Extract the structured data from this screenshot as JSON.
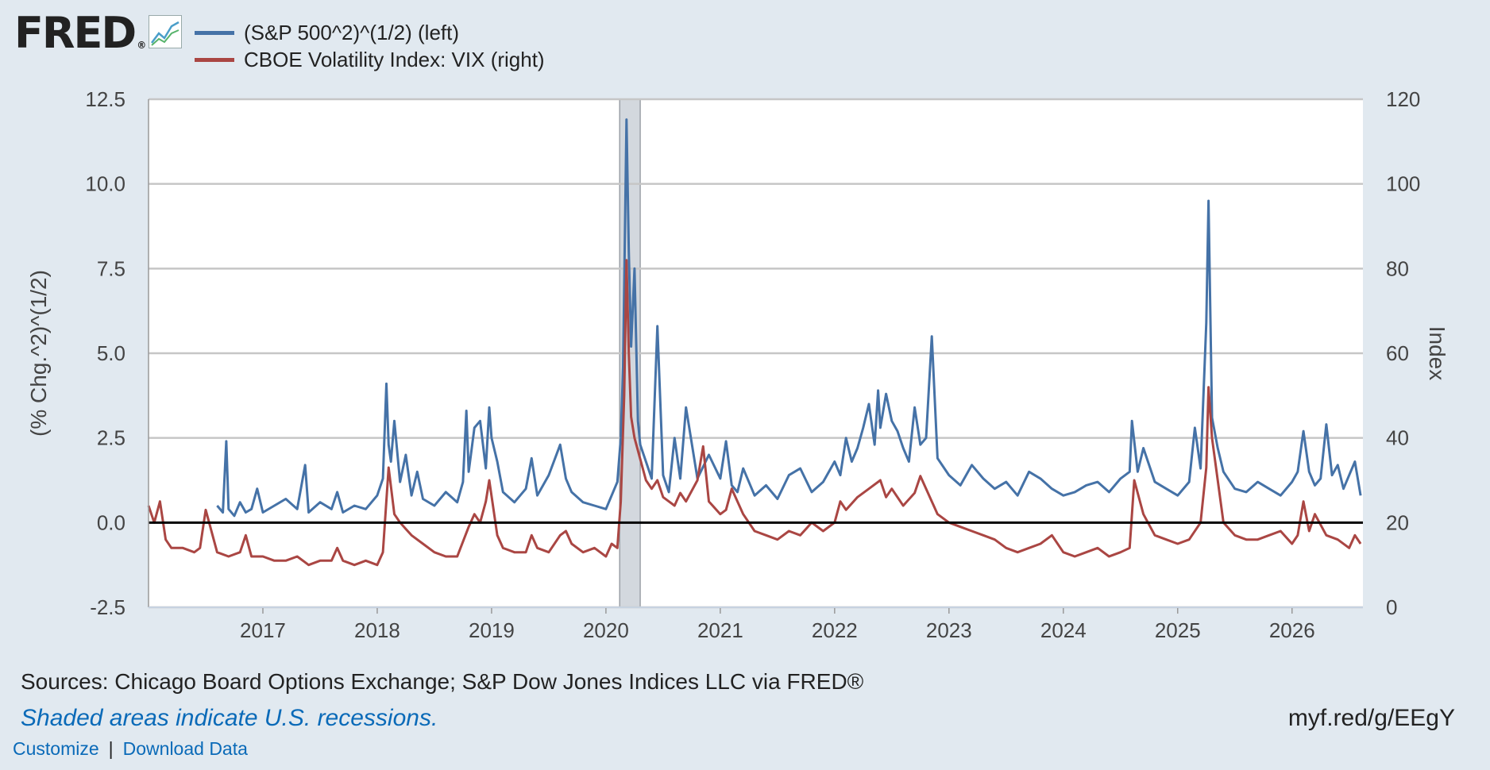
{
  "header": {
    "logo_text": "FRED",
    "logo_mark": "®",
    "graph_icon": "line-chart-icon"
  },
  "legend": [
    {
      "label": "(S&P 500^2)^(1/2) (left)",
      "color": "#4572a7"
    },
    {
      "label": "CBOE Volatility Index: VIX (right)",
      "color": "#aa4643"
    }
  ],
  "footer": {
    "sources": "Sources: Chicago Board Options Exchange; S&P Dow Jones Indices LLC via FRED®",
    "recession_note": "Shaded areas indicate U.S. recessions.",
    "short_url": "myf.red/g/EEgY",
    "customize": "Customize",
    "separator": "|",
    "download": "Download Data"
  },
  "chart_data": {
    "type": "line",
    "title": "",
    "xlabel": "",
    "ylabel_left": "(% Chg.^2)^(1/2)",
    "ylabel_right": "Index",
    "xlim": [
      2016.0,
      2026.62
    ],
    "ylim_left": [
      -2.5,
      12.5
    ],
    "ylim_right": [
      0,
      120
    ],
    "left_ticks": [
      "-2.5",
      "0.0",
      "2.5",
      "5.0",
      "7.5",
      "10.0",
      "12.5"
    ],
    "right_ticks": [
      "0",
      "20",
      "40",
      "60",
      "80",
      "100",
      "120"
    ],
    "x_ticks": [
      "2017",
      "2018",
      "2019",
      "2020",
      "2021",
      "2022",
      "2023",
      "2024",
      "2025",
      "2026"
    ],
    "grid": true,
    "zero_line": 0,
    "recession": {
      "start": 2020.12,
      "end": 2020.3
    },
    "series": [
      {
        "name": "(S&P 500^2)^(1/2) (left)",
        "axis": "left",
        "color": "#4572a7",
        "x": [
          2016.6,
          2016.65,
          2016.68,
          2016.7,
          2016.75,
          2016.8,
          2016.85,
          2016.9,
          2016.95,
          2017.0,
          2017.1,
          2017.2,
          2017.3,
          2017.37,
          2017.4,
          2017.5,
          2017.6,
          2017.65,
          2017.7,
          2017.8,
          2017.9,
          2018.0,
          2018.05,
          2018.08,
          2018.1,
          2018.12,
          2018.15,
          2018.2,
          2018.25,
          2018.3,
          2018.35,
          2018.4,
          2018.5,
          2018.6,
          2018.7,
          2018.75,
          2018.78,
          2018.8,
          2018.85,
          2018.9,
          2018.95,
          2018.98,
          2019.0,
          2019.05,
          2019.1,
          2019.2,
          2019.3,
          2019.35,
          2019.4,
          2019.5,
          2019.6,
          2019.65,
          2019.7,
          2019.8,
          2019.9,
          2020.0,
          2020.05,
          2020.1,
          2020.13,
          2020.15,
          2020.18,
          2020.2,
          2020.22,
          2020.25,
          2020.28,
          2020.3,
          2020.35,
          2020.4,
          2020.45,
          2020.5,
          2020.55,
          2020.6,
          2020.65,
          2020.7,
          2020.8,
          2020.9,
          2021.0,
          2021.05,
          2021.1,
          2021.15,
          2021.2,
          2021.3,
          2021.4,
          2021.5,
          2021.6,
          2021.7,
          2021.8,
          2021.9,
          2022.0,
          2022.05,
          2022.1,
          2022.15,
          2022.2,
          2022.25,
          2022.3,
          2022.35,
          2022.38,
          2022.4,
          2022.45,
          2022.5,
          2022.55,
          2022.6,
          2022.65,
          2022.7,
          2022.75,
          2022.8,
          2022.85,
          2022.9,
          2023.0,
          2023.1,
          2023.2,
          2023.3,
          2023.4,
          2023.5,
          2023.6,
          2023.7,
          2023.8,
          2023.9,
          2024.0,
          2024.1,
          2024.2,
          2024.3,
          2024.4,
          2024.5,
          2024.58,
          2024.6,
          2024.65,
          2024.7,
          2024.8,
          2024.9,
          2025.0,
          2025.1,
          2025.15,
          2025.2,
          2025.25,
          2025.27,
          2025.3,
          2025.35,
          2025.4,
          2025.5,
          2025.6,
          2025.7,
          2025.8,
          2025.9,
          2026.0,
          2026.05,
          2026.1,
          2026.15,
          2026.2,
          2026.25,
          2026.3,
          2026.35,
          2026.4,
          2026.45,
          2026.5,
          2026.55,
          2026.6
        ],
        "y": [
          0.5,
          0.3,
          2.4,
          0.4,
          0.2,
          0.6,
          0.3,
          0.4,
          1.0,
          0.3,
          0.5,
          0.7,
          0.4,
          1.7,
          0.3,
          0.6,
          0.4,
          0.9,
          0.3,
          0.5,
          0.4,
          0.8,
          1.3,
          4.1,
          2.3,
          1.8,
          3.0,
          1.2,
          2.0,
          0.8,
          1.5,
          0.7,
          0.5,
          0.9,
          0.6,
          1.2,
          3.3,
          1.5,
          2.8,
          3.0,
          1.6,
          3.4,
          2.5,
          1.8,
          0.9,
          0.6,
          1.0,
          1.9,
          0.8,
          1.4,
          2.3,
          1.3,
          0.9,
          0.6,
          0.5,
          0.4,
          0.8,
          1.2,
          2.5,
          4.6,
          11.9,
          8.0,
          5.2,
          7.5,
          3.0,
          2.3,
          1.8,
          1.3,
          5.8,
          1.4,
          0.9,
          2.5,
          1.3,
          3.4,
          1.3,
          2.0,
          1.3,
          2.4,
          1.1,
          0.9,
          1.6,
          0.8,
          1.1,
          0.7,
          1.4,
          1.6,
          0.9,
          1.2,
          1.8,
          1.4,
          2.5,
          1.8,
          2.2,
          2.8,
          3.5,
          2.3,
          3.9,
          2.8,
          3.8,
          3.0,
          2.7,
          2.2,
          1.8,
          3.4,
          2.3,
          2.5,
          5.5,
          1.9,
          1.4,
          1.1,
          1.7,
          1.3,
          1.0,
          1.2,
          0.8,
          1.5,
          1.3,
          1.0,
          0.8,
          0.9,
          1.1,
          1.2,
          0.9,
          1.3,
          1.5,
          3.0,
          1.5,
          2.2,
          1.2,
          1.0,
          0.8,
          1.2,
          2.8,
          1.6,
          5.9,
          9.5,
          3.1,
          2.2,
          1.5,
          1.0,
          0.9,
          1.2,
          1.0,
          0.8,
          1.2,
          1.5,
          2.7,
          1.5,
          1.1,
          1.3,
          2.9,
          1.4,
          1.7,
          1.0,
          1.4,
          1.8,
          0.8
        ]
      },
      {
        "name": "CBOE Volatility Index: VIX (right)",
        "axis": "right",
        "color": "#aa4643",
        "x": [
          2016.0,
          2016.05,
          2016.1,
          2016.15,
          2016.2,
          2016.3,
          2016.4,
          2016.45,
          2016.5,
          2016.6,
          2016.7,
          2016.8,
          2016.85,
          2016.9,
          2017.0,
          2017.1,
          2017.2,
          2017.3,
          2017.4,
          2017.5,
          2017.6,
          2017.65,
          2017.7,
          2017.8,
          2017.9,
          2018.0,
          2018.05,
          2018.1,
          2018.15,
          2018.2,
          2018.3,
          2018.4,
          2018.5,
          2018.6,
          2018.7,
          2018.8,
          2018.85,
          2018.9,
          2018.95,
          2018.98,
          2019.05,
          2019.1,
          2019.2,
          2019.3,
          2019.35,
          2019.4,
          2019.5,
          2019.6,
          2019.65,
          2019.7,
          2019.8,
          2019.9,
          2020.0,
          2020.05,
          2020.1,
          2020.13,
          2020.16,
          2020.18,
          2020.2,
          2020.22,
          2020.25,
          2020.3,
          2020.35,
          2020.4,
          2020.45,
          2020.5,
          2020.6,
          2020.65,
          2020.7,
          2020.8,
          2020.85,
          2020.9,
          2021.0,
          2021.05,
          2021.1,
          2021.2,
          2021.3,
          2021.4,
          2021.5,
          2021.6,
          2021.7,
          2021.8,
          2021.9,
          2022.0,
          2022.05,
          2022.1,
          2022.2,
          2022.3,
          2022.4,
          2022.45,
          2022.5,
          2022.6,
          2022.7,
          2022.75,
          2022.8,
          2022.85,
          2022.9,
          2023.0,
          2023.1,
          2023.2,
          2023.3,
          2023.4,
          2023.5,
          2023.6,
          2023.7,
          2023.8,
          2023.9,
          2024.0,
          2024.1,
          2024.2,
          2024.3,
          2024.4,
          2024.5,
          2024.58,
          2024.62,
          2024.7,
          2024.8,
          2024.9,
          2025.0,
          2025.1,
          2025.2,
          2025.25,
          2025.27,
          2025.3,
          2025.35,
          2025.4,
          2025.5,
          2025.6,
          2025.7,
          2025.8,
          2025.9,
          2026.0,
          2026.05,
          2026.1,
          2026.15,
          2026.2,
          2026.3,
          2026.4,
          2026.5,
          2026.55,
          2026.6
        ],
        "y": [
          24,
          20,
          25,
          16,
          14,
          14,
          13,
          14,
          23,
          13,
          12,
          13,
          17,
          12,
          12,
          11,
          11,
          12,
          10,
          11,
          11,
          14,
          11,
          10,
          11,
          10,
          13,
          33,
          22,
          20,
          17,
          15,
          13,
          12,
          12,
          19,
          22,
          20,
          25,
          30,
          17,
          14,
          13,
          13,
          17,
          14,
          13,
          17,
          18,
          15,
          13,
          14,
          12,
          15,
          14,
          25,
          50,
          82,
          60,
          45,
          40,
          35,
          30,
          28,
          30,
          26,
          24,
          27,
          25,
          30,
          38,
          25,
          22,
          23,
          28,
          22,
          18,
          17,
          16,
          18,
          17,
          20,
          18,
          20,
          25,
          23,
          26,
          28,
          30,
          26,
          28,
          24,
          27,
          31,
          28,
          25,
          22,
          20,
          19,
          18,
          17,
          16,
          14,
          13,
          14,
          15,
          17,
          13,
          12,
          13,
          14,
          12,
          13,
          14,
          30,
          22,
          17,
          16,
          15,
          16,
          20,
          33,
          52,
          40,
          30,
          20,
          17,
          16,
          16,
          17,
          18,
          15,
          17,
          25,
          18,
          22,
          17,
          16,
          14,
          17,
          15
        ]
      }
    ]
  }
}
